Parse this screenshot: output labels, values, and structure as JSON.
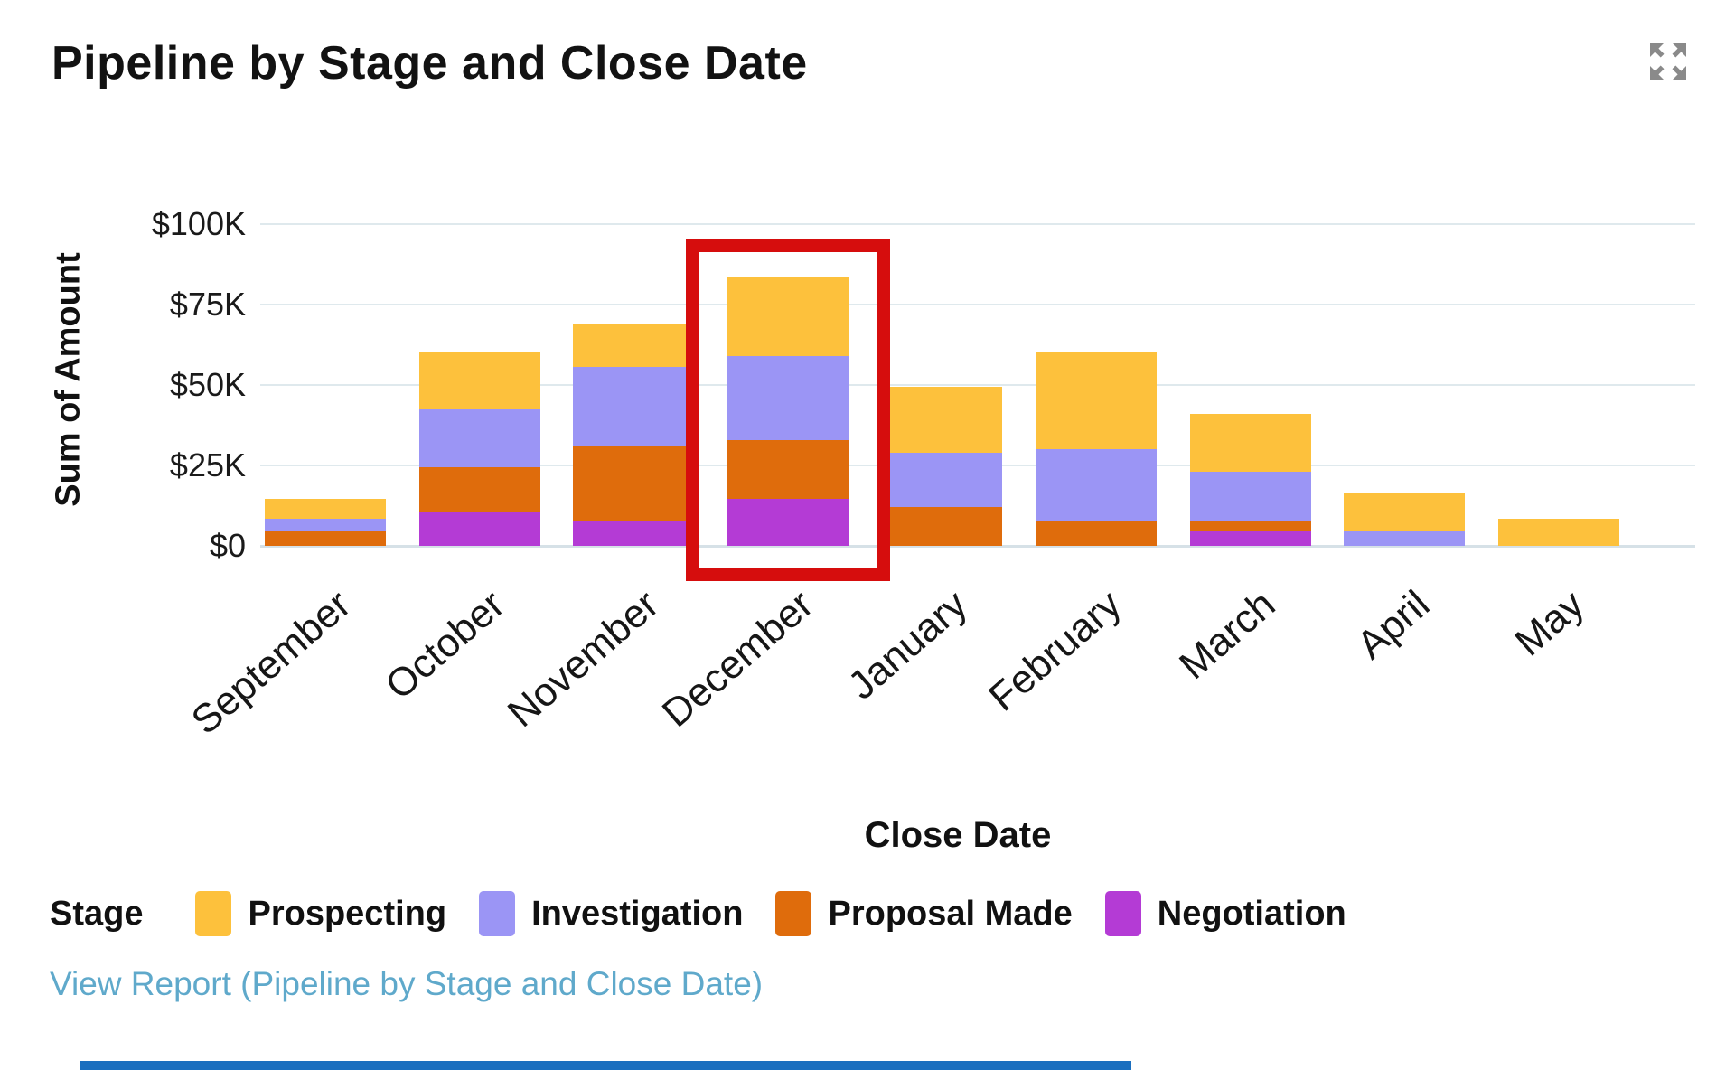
{
  "header": {
    "title": "Pipeline by Stage and Close Date",
    "expand_icon": "expand-arrows-icon"
  },
  "chart_data": {
    "type": "bar",
    "stacked": true,
    "title": "Pipeline by Stage and Close Date",
    "categories": [
      "September",
      "October",
      "November",
      "December",
      "January",
      "February",
      "March",
      "April",
      "May"
    ],
    "series": [
      {
        "name": "Negotiation",
        "color": "#b43bd5",
        "values": [
          0,
          10.5,
          7.5,
          14.5,
          0,
          0,
          4.5,
          0,
          0
        ]
      },
      {
        "name": "Proposal Made",
        "color": "#df6c0c",
        "values": [
          4.5,
          14,
          23.5,
          18.5,
          12,
          8,
          3.5,
          0,
          0
        ]
      },
      {
        "name": "Investigation",
        "color": "#9b95f5",
        "values": [
          4,
          18,
          24.5,
          26,
          17,
          22,
          15,
          4.5,
          0
        ]
      },
      {
        "name": "Prospecting",
        "color": "#fdc13c",
        "values": [
          6,
          18,
          13.5,
          24.5,
          20.5,
          30,
          18,
          12,
          8.5
        ]
      }
    ],
    "values_unit": "USD thousands",
    "totals_k": [
      14.5,
      60.5,
      69,
      83.5,
      49.5,
      60,
      41,
      16.5,
      8.5
    ],
    "xlabel": "Close Date",
    "ylabel": "Sum of Amount",
    "y_axis": {
      "ticks": [
        {
          "label": "$100K",
          "value": 100
        },
        {
          "label": "$75K",
          "value": 75
        },
        {
          "label": "$50K",
          "value": 50
        },
        {
          "label": "$25K",
          "value": 25
        },
        {
          "label": "$0",
          "value": 0
        }
      ],
      "ylim": [
        0,
        100
      ]
    },
    "grid": "horizontal",
    "legend_position": "bottom",
    "legend_title": "Stage",
    "legend_order": [
      "Prospecting",
      "Investigation",
      "Proposal Made",
      "Negotiation"
    ],
    "annotation": {
      "type": "highlight-box",
      "target_category": "December",
      "color": "#d60d0d"
    }
  },
  "footer": {
    "view_report_label": "View Report (Pipeline by Stage and Close Date)"
  },
  "colors": {
    "gridline": "#dfe9ed",
    "link": "#5fa9cb",
    "icon_gray": "#8a8a8a",
    "highlight_red": "#d60d0d",
    "bottom_bar_blue": "#1b6fbf"
  }
}
